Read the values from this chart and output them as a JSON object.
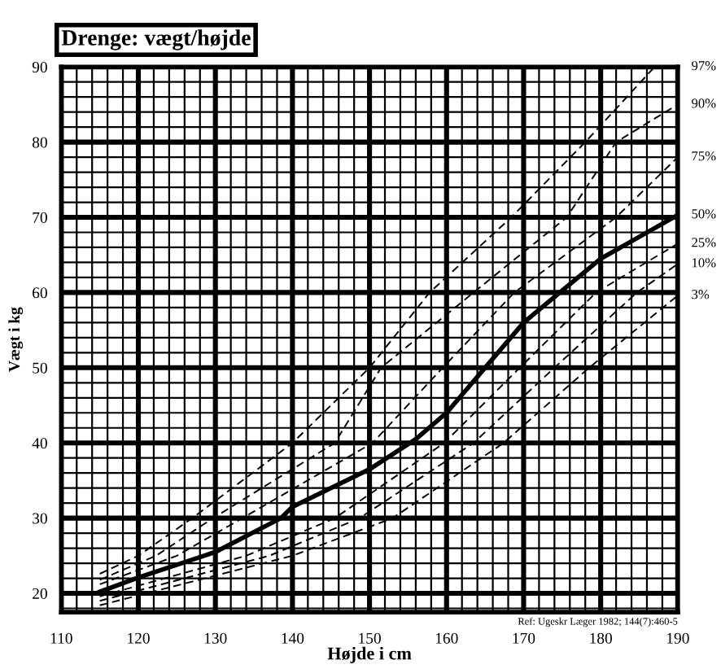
{
  "chart_data": {
    "type": "line",
    "title": "Drenge: vægt/højde",
    "xlabel": "Højde i cm",
    "ylabel": "Vægt i kg",
    "xlim": [
      110,
      190
    ],
    "xticks": [
      110,
      120,
      130,
      140,
      150,
      160,
      170,
      180,
      190
    ],
    "ylim": [
      17.5,
      90
    ],
    "yticks": [
      20,
      30,
      40,
      50,
      60,
      70,
      80,
      90
    ],
    "grid": true,
    "legend": false,
    "marker": "none",
    "annotations": [
      "Ref: Ugeskr Læger 1982; 144(7):460-5"
    ],
    "series": [
      {
        "name": "97%",
        "color": "#000000",
        "line_style": "dashed",
        "x": [
          115,
          120,
          127,
          140,
          150,
          157.8,
          168.4,
          178,
          187
        ],
        "values": [
          22.6,
          25,
          30,
          40,
          50,
          60,
          70,
          80,
          90
        ]
      },
      {
        "name": "90%",
        "color": "#000000",
        "line_style": "dashed",
        "x": [
          115,
          122.3,
          129.7,
          145.5,
          151.5,
          163.5,
          175.6,
          182,
          190
        ],
        "values": [
          21.8,
          25,
          30,
          40,
          50,
          60,
          70,
          80,
          85
        ]
      },
      {
        "name": "75%",
        "color": "#000000",
        "line_style": "dashed",
        "x": [
          115,
          125,
          133.5,
          150.4,
          159.5,
          168.8,
          182,
          190
        ],
        "values": [
          21.2,
          25,
          30,
          40,
          50,
          60,
          70,
          78
        ]
      },
      {
        "name": "50%",
        "color": "#000000",
        "line_style": "solid",
        "x": [
          115,
          120,
          130,
          138.5,
          140,
          150,
          156,
          160,
          170,
          174.7,
          180,
          190
        ],
        "values": [
          20.2,
          22.1,
          25.5,
          30,
          31.5,
          36.5,
          40.5,
          44,
          56,
          60,
          64.5,
          70.3
        ]
      },
      {
        "name": "25%",
        "color": "#000000",
        "line_style": "dashed",
        "x": [
          115,
          134,
          145.5,
          159.7,
          169.5,
          179.4,
          190
        ],
        "values": [
          19.6,
          25,
          30,
          40,
          50,
          60,
          66.5
        ]
      },
      {
        "name": "10%",
        "color": "#000000",
        "line_style": "dashed",
        "x": [
          115,
          137,
          148.7,
          163.5,
          174,
          184.7,
          190
        ],
        "values": [
          19.0,
          25,
          30,
          40,
          50,
          60,
          63.8
        ]
      },
      {
        "name": "3%",
        "color": "#000000",
        "line_style": "dashed",
        "x": [
          115,
          140,
          153,
          167.4,
          178.5,
          190
        ],
        "values": [
          18.4,
          25,
          30,
          40,
          50,
          59.6
        ]
      }
    ]
  }
}
